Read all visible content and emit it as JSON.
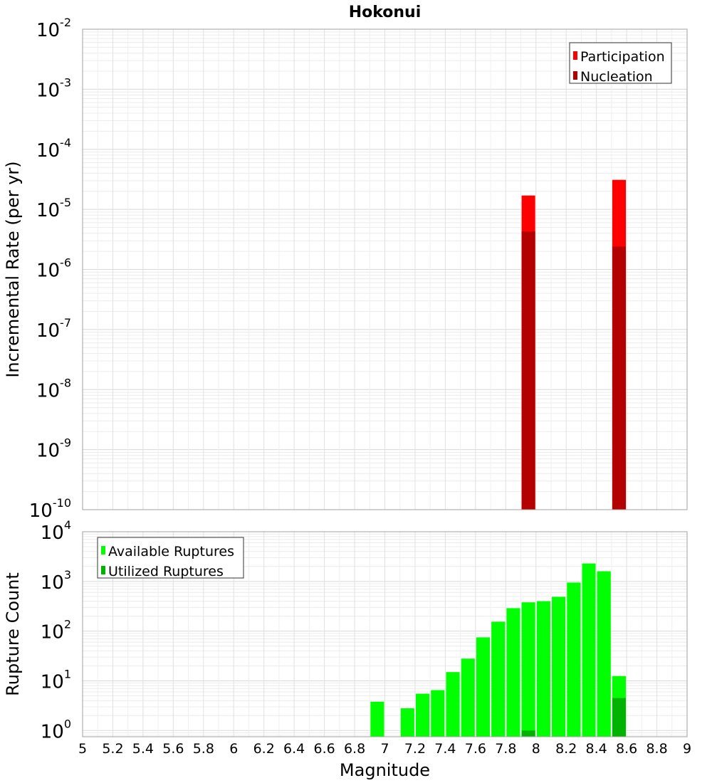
{
  "chart_data": [
    {
      "type": "bar",
      "title": "Hokonui",
      "xlabel": "",
      "ylabel": "Incremental Rate (per yr)",
      "y_scale": "log",
      "ylim": [
        1e-10,
        0.01
      ],
      "xlim": [
        5,
        9
      ],
      "y_ticks": [
        {
          "base": "10",
          "exp": "-2"
        },
        {
          "base": "10",
          "exp": "-3"
        },
        {
          "base": "10",
          "exp": "-4"
        },
        {
          "base": "10",
          "exp": "-5"
        },
        {
          "base": "10",
          "exp": "-6"
        },
        {
          "base": "10",
          "exp": "-7"
        },
        {
          "base": "10",
          "exp": "-8"
        },
        {
          "base": "10",
          "exp": "-9"
        },
        {
          "base": "10",
          "exp": "-10"
        }
      ],
      "grid": true,
      "legend_position": "top-right",
      "bar_width": 0.09,
      "series": [
        {
          "name": "Participation",
          "color": "#ff0000",
          "x": [
            7.95,
            8.55
          ],
          "values": [
            1.7e-05,
            3.1e-05
          ]
        },
        {
          "name": "Nucleation",
          "color": "#b30000",
          "x": [
            7.95,
            8.55
          ],
          "values": [
            4.3e-06,
            2.4e-06
          ]
        }
      ]
    },
    {
      "type": "bar",
      "title": "",
      "xlabel": "Magnitude",
      "ylabel": "Rupture Count",
      "y_scale": "log",
      "ylim": [
        0.75,
        10000
      ],
      "xlim": [
        5,
        9
      ],
      "x_ticks": [
        "5",
        "5.2",
        "5.4",
        "5.6",
        "5.8",
        "6",
        "6.2",
        "6.4",
        "6.6",
        "6.8",
        "7",
        "7.2",
        "7.4",
        "7.6",
        "7.8",
        "8",
        "8.2",
        "8.4",
        "8.6",
        "8.8",
        "9"
      ],
      "y_ticks": [
        {
          "base": "10",
          "exp": "4"
        },
        {
          "base": "10",
          "exp": "3"
        },
        {
          "base": "10",
          "exp": "2"
        },
        {
          "base": "10",
          "exp": "1"
        },
        {
          "base": "10",
          "exp": "0"
        }
      ],
      "grid": true,
      "legend_position": "top-left",
      "bar_width": 0.09,
      "series": [
        {
          "name": "Available Ruptures",
          "color": "#00ff00",
          "x": [
            6.95,
            7.15,
            7.25,
            7.35,
            7.45,
            7.55,
            7.65,
            7.75,
            7.85,
            7.95,
            8.05,
            8.15,
            8.25,
            8.35,
            8.45,
            8.55
          ],
          "values": [
            3.8,
            2.8,
            5.5,
            6.5,
            15,
            28,
            75,
            155,
            290,
            380,
            400,
            490,
            950,
            2300,
            1600,
            12.5
          ]
        },
        {
          "name": "Utilized Ruptures",
          "color": "#00b300",
          "x": [
            7.95,
            8.55
          ],
          "values": [
            1,
            4.5
          ]
        }
      ]
    }
  ]
}
